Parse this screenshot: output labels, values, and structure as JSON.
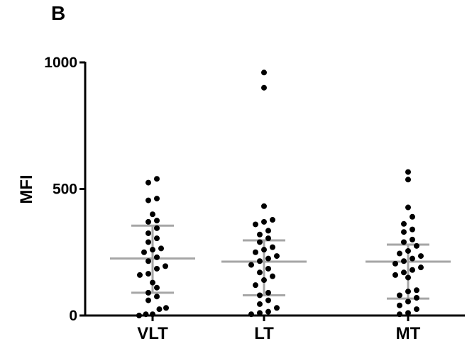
{
  "panel_label": "B",
  "chart_data": {
    "type": "scatter",
    "title": "",
    "xlabel": "",
    "ylabel": "MFI",
    "ylim": [
      0,
      1000
    ],
    "yticks": [
      0,
      500,
      1000
    ],
    "grid": false,
    "categories": [
      "VLT",
      "LT",
      "MT"
    ],
    "summary_color": "#a6a6a6",
    "point_color": "#000000",
    "groups": [
      {
        "name": "VLT",
        "mean": 225,
        "sd_upper": 355,
        "sd_lower": 90,
        "values": [
          540,
          525,
          462,
          455,
          400,
          375,
          370,
          345,
          325,
          305,
          290,
          265,
          260,
          250,
          230,
          215,
          195,
          185,
          165,
          160,
          130,
          110,
          90,
          75,
          60,
          30,
          25,
          5,
          5,
          0
        ]
      },
      {
        "name": "LT",
        "mean": 213,
        "sd_upper": 297,
        "sd_lower": 80,
        "values": [
          960,
          900,
          432,
          378,
          370,
          360,
          335,
          320,
          305,
          290,
          270,
          260,
          250,
          235,
          225,
          215,
          200,
          185,
          170,
          155,
          140,
          120,
          90,
          80,
          60,
          45,
          30,
          15,
          10,
          5
        ]
      },
      {
        "name": "MT",
        "mean": 213,
        "sd_upper": 280,
        "sd_lower": 67,
        "values": [
          567,
          537,
          427,
          390,
          362,
          340,
          330,
          300,
          290,
          275,
          255,
          245,
          235,
          225,
          215,
          205,
          190,
          180,
          170,
          160,
          150,
          100,
          95,
          80,
          70,
          55,
          40,
          25,
          10,
          5
        ]
      }
    ]
  }
}
